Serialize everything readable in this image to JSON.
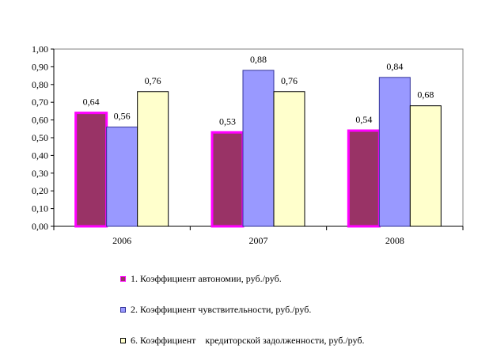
{
  "chart_data": {
    "type": "bar",
    "categories": [
      "2006",
      "2007",
      "2008"
    ],
    "ylim": [
      0,
      1.0
    ],
    "yticks": [
      "0,00",
      "0,10",
      "0,20",
      "0,30",
      "0,40",
      "0,50",
      "0,60",
      "0,70",
      "0,80",
      "0,90",
      "1,00"
    ],
    "grid": false,
    "legend_position": "bottom",
    "series": [
      {
        "name": "1. Коэффициент автономии, руб./руб.",
        "values": [
          0.64,
          0.53,
          0.54
        ],
        "labels": [
          "0,64",
          "0,53",
          "0,54"
        ],
        "fill": "#993366",
        "stroke": "#ff00ff"
      },
      {
        "name": "2. Коэффициент чувствительности, руб./руб.",
        "values": [
          0.56,
          0.88,
          0.84
        ],
        "labels": [
          "0,56",
          "0,88",
          "0,84"
        ],
        "fill": "#9999ff",
        "stroke": "#333399"
      },
      {
        "name": "6. Коэффициент    кредиторской задолженности, руб./руб.",
        "values": [
          0.76,
          0.76,
          0.68
        ],
        "labels": [
          "0,76",
          "0,76",
          "0,68"
        ],
        "fill": "#ffffcc",
        "stroke": "#000000"
      }
    ],
    "plot_background": "#ffffff"
  }
}
